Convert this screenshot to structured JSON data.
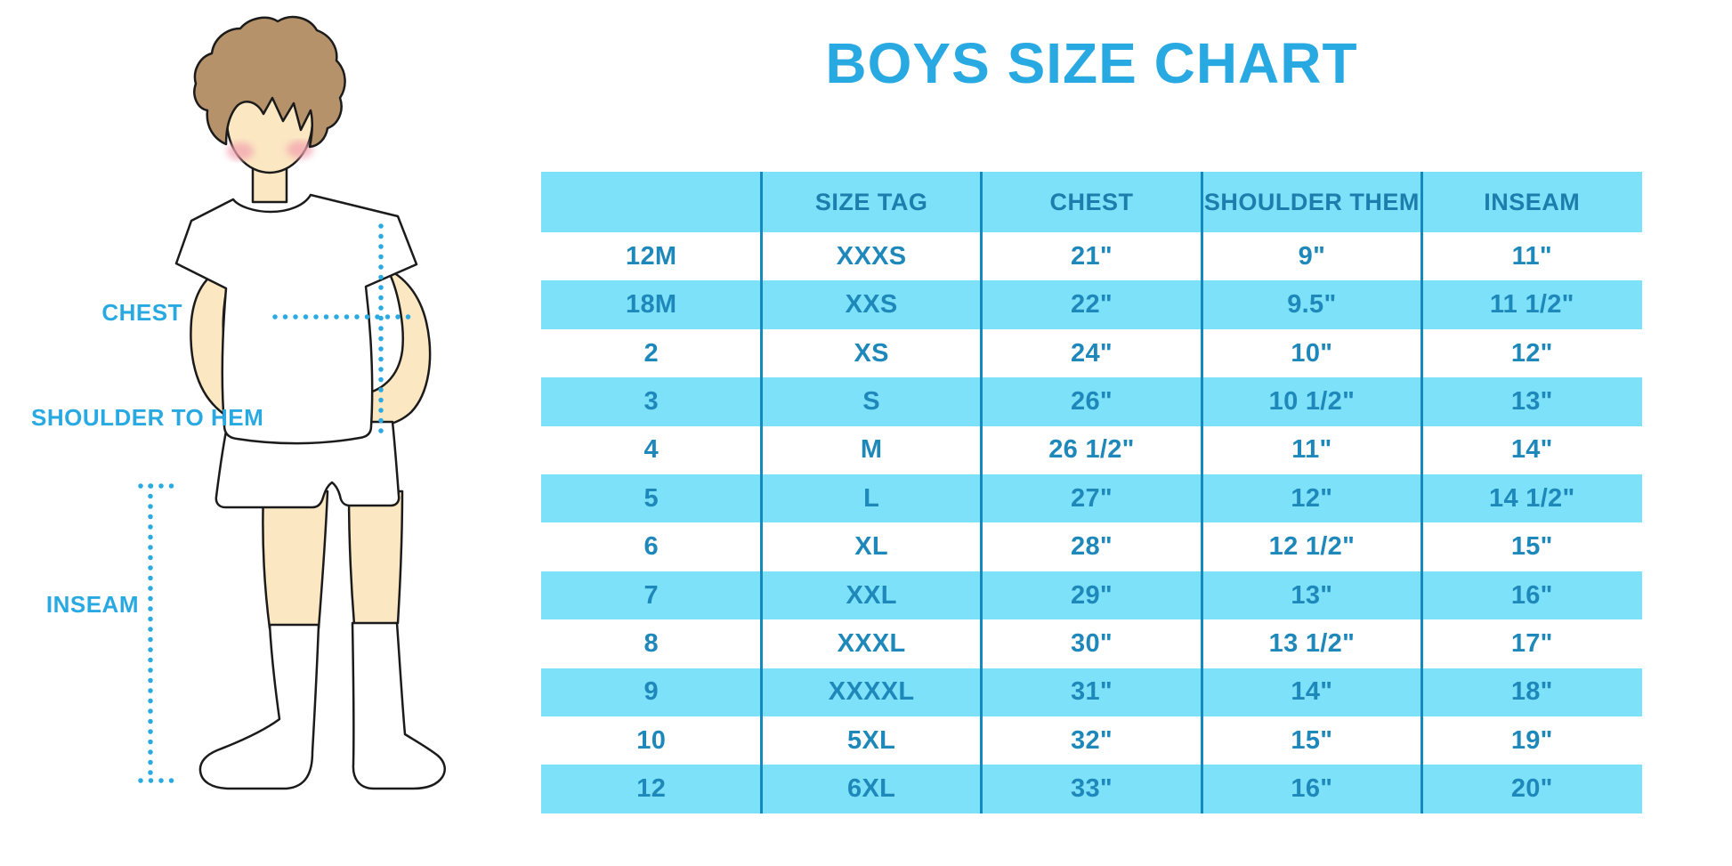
{
  "title": "BOYS SIZE CHART",
  "figure": {
    "labels": {
      "chest": "CHEST",
      "shoulder_to_hem": "SHOULDER TO HEM",
      "inseam": "INSEAM"
    }
  },
  "chart_data": {
    "type": "table",
    "title": "BOYS SIZE CHART",
    "columns": [
      "",
      "SIZE TAG",
      "CHEST",
      "SHOULDER THEM",
      "INSEAM"
    ],
    "rows": [
      [
        "12M",
        "XXXS",
        "21\"",
        "9\"",
        "11\""
      ],
      [
        "18M",
        "XXS",
        "22\"",
        "9.5\"",
        "11 1/2\""
      ],
      [
        "2",
        "XS",
        "24\"",
        "10\"",
        "12\""
      ],
      [
        "3",
        "S",
        "26\"",
        "10 1/2\"",
        "13\""
      ],
      [
        "4",
        "M",
        "26 1/2\"",
        "11\"",
        "14\""
      ],
      [
        "5",
        "L",
        "27\"",
        "12\"",
        "14 1/2\""
      ],
      [
        "6",
        "XL",
        "28\"",
        "12 1/2\"",
        "15\""
      ],
      [
        "7",
        "XXL",
        "29\"",
        "13\"",
        "16\""
      ],
      [
        "8",
        "XXXL",
        "30\"",
        "13 1/2\"",
        "17\""
      ],
      [
        "9",
        "XXXXL",
        "31\"",
        "14\"",
        "18\""
      ],
      [
        "10",
        "5XL",
        "32\"",
        "15\"",
        "19\""
      ],
      [
        "12",
        "6XL",
        "33\"",
        "16\"",
        "20\""
      ]
    ]
  },
  "colors": {
    "accent_blue": "#29A9E1",
    "band_blue": "#7CE1F9",
    "table_text": "#1E88BB",
    "divider": "#1489BD",
    "dotted_line": "#2BAAE2"
  }
}
